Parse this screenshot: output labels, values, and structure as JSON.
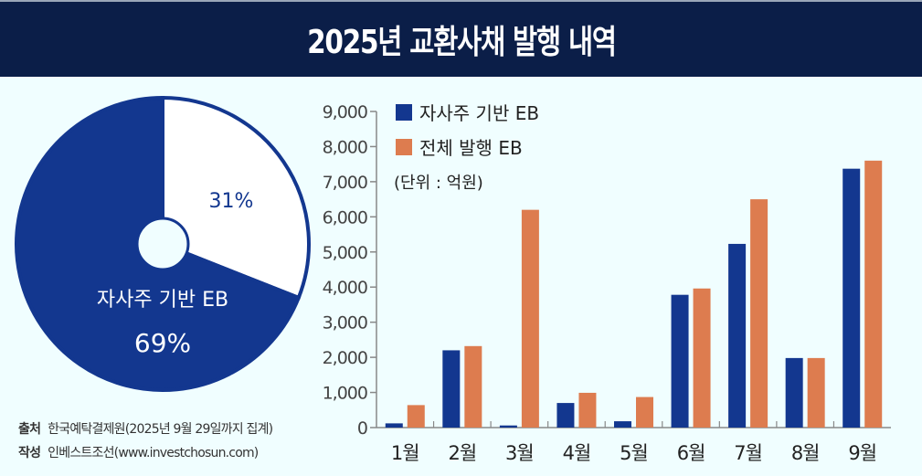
{
  "header": {
    "title": "2025년 교환사채 발행 내역"
  },
  "footer": {
    "source_label": "출처",
    "source_text": "한국예탁결제원(2025년 9월 29일까지 집계)",
    "author_label": "작성",
    "author_text": "인베스트조선(www.investchosun.com)"
  },
  "colors": {
    "blue": "#13378f",
    "orange": "#dd7c4f",
    "header_bg": "#0b1e48",
    "background": "#f0feff"
  },
  "chart_data": [
    {
      "type": "pie",
      "title": "",
      "slices": [
        {
          "label": "자사주 기반 EB",
          "value": 69,
          "display": "69%",
          "color": "#13378f"
        },
        {
          "label": "",
          "value": 31,
          "display": "31%",
          "color": "#ffffff"
        }
      ]
    },
    {
      "type": "bar",
      "title": "",
      "unit_note": "(단위 : 억원)",
      "categories": [
        "1월",
        "2월",
        "3월",
        "4월",
        "5월",
        "6월",
        "7월",
        "8월",
        "9월"
      ],
      "series": [
        {
          "name": "자사주 기반 EB",
          "color": "#13378f",
          "values": [
            120,
            2200,
            60,
            700,
            180,
            3780,
            5230,
            1980,
            7370
          ]
        },
        {
          "name": "전체 발행 EB",
          "color": "#dd7c4f",
          "values": [
            640,
            2320,
            6200,
            990,
            870,
            3960,
            6500,
            1980,
            7600
          ]
        }
      ],
      "ylim": [
        0,
        9000
      ],
      "yticks": [
        "0",
        "1,000",
        "2,000",
        "3,000",
        "4,000",
        "5,000",
        "6,000",
        "7,000",
        "8,000",
        "9,000"
      ],
      "legend_position": "top-left",
      "grid": false
    }
  ]
}
